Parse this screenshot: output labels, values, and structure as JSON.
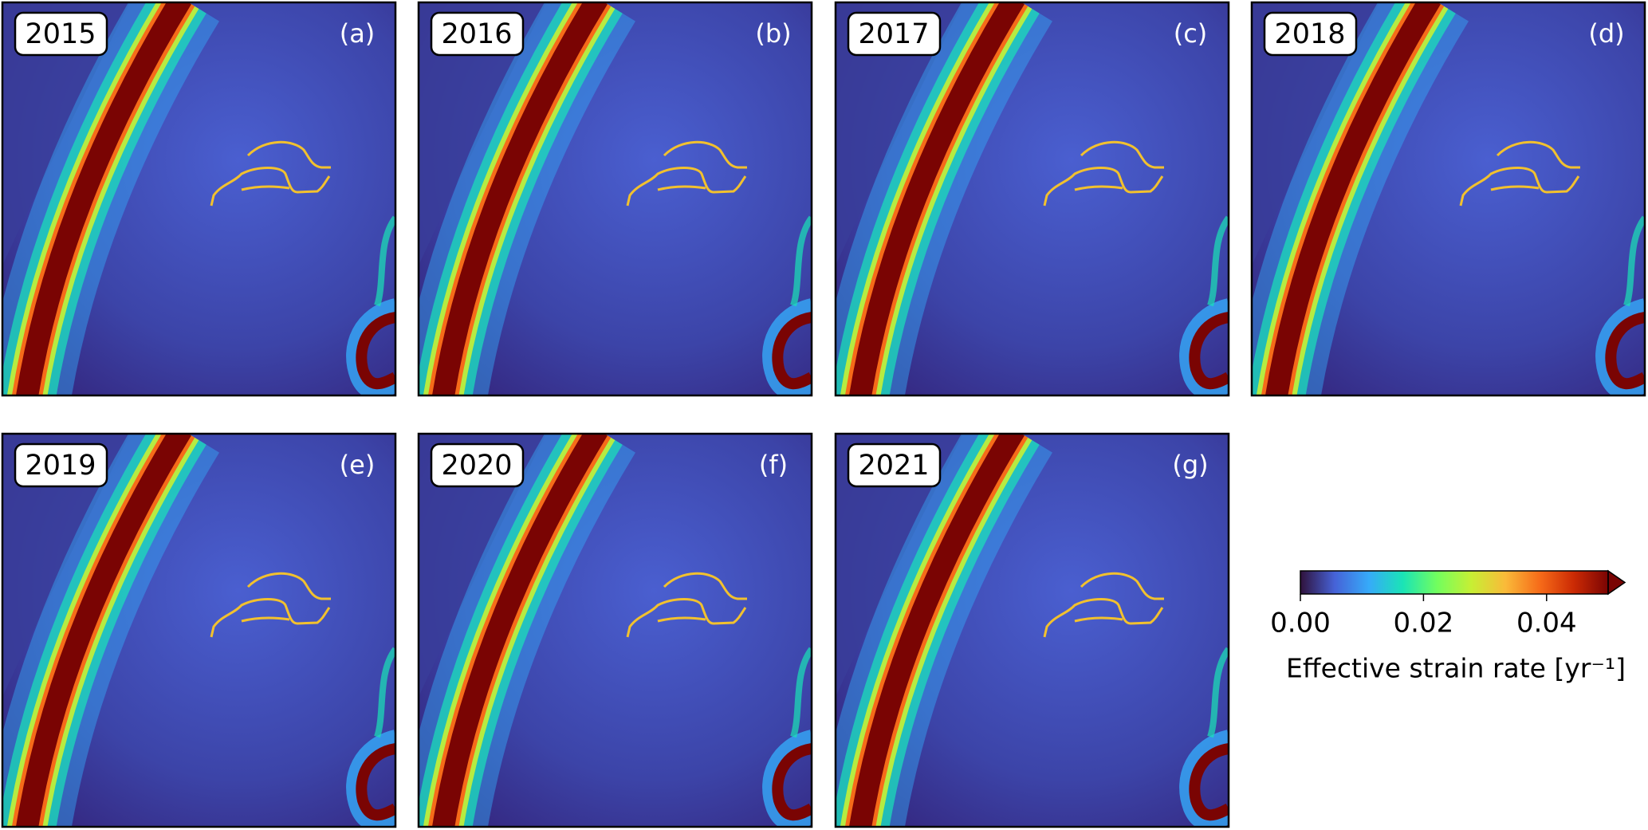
{
  "chart_data": {
    "type": "map-panels",
    "panels": [
      {
        "year": "2015",
        "label": "(a)"
      },
      {
        "year": "2016",
        "label": "(b)"
      },
      {
        "year": "2017",
        "label": "(c)"
      },
      {
        "year": "2018",
        "label": "(d)"
      },
      {
        "year": "2019",
        "label": "(e)"
      },
      {
        "year": "2020",
        "label": "(f)"
      },
      {
        "year": "2021",
        "label": "(g)"
      }
    ],
    "colorbar": {
      "label": "Effective strain rate [yr⁻¹]",
      "lim": [
        0,
        0.05
      ],
      "ticks": [
        {
          "value": 0,
          "label": "0.00"
        },
        0.02,
        0.04
      ],
      "colormap": [
        "#30123b",
        "#4662d7",
        "#36aaf9",
        "#1ae4b6",
        "#72fe5e",
        "#c7ef34",
        "#faba39",
        "#f66b19",
        "#cb2a04",
        "#7a0403"
      ],
      "extend": "max"
    }
  }
}
